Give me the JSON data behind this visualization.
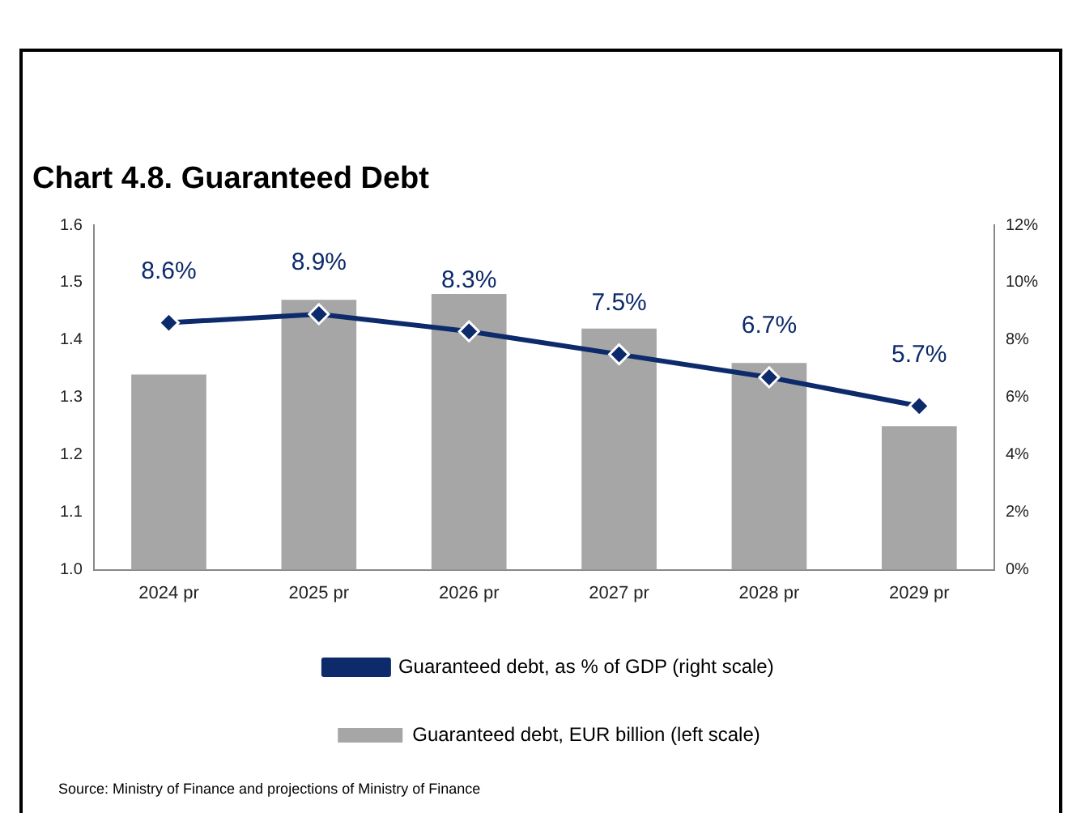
{
  "chart_data": {
    "type": "bar",
    "title": "Chart 4.8. Guaranteed Debt",
    "categories": [
      "2024 pr",
      "2025 pr",
      "2026 pr",
      "2027 pr",
      "2028 pr",
      "2029 pr"
    ],
    "series": [
      {
        "name": "Guaranteed debt, EUR billion (left scale)",
        "color": "#a6a6a6",
        "values": [
          1.34,
          1.47,
          1.48,
          1.42,
          1.36,
          1.25
        ]
      },
      {
        "type": "line",
        "axis": "y2",
        "name": "Guaranteed debt, as % of GDP (right scale)",
        "color": "#0d2a6b",
        "values": [
          8.6,
          8.9,
          8.3,
          7.5,
          6.7,
          5.7
        ],
        "value_labels": [
          "8.6%",
          "8.9%",
          "8.3%",
          "7.5%",
          "6.7%",
          "5.7%"
        ]
      }
    ],
    "ylim": [
      1.0,
      1.6
    ],
    "yticks": [
      {
        "value": 1.0,
        "label": "1.0"
      },
      1.1,
      1.2,
      1.3,
      1.4,
      1.5,
      1.6
    ],
    "y2lim": [
      0,
      12
    ],
    "y2ticks": [
      {
        "value": 0,
        "label": "0%"
      },
      {
        "value": 2,
        "label": "2%"
      },
      {
        "value": 4,
        "label": "4%"
      },
      {
        "value": 6,
        "label": "6%"
      },
      {
        "value": 8,
        "label": "8%"
      },
      {
        "value": 10,
        "label": "10%"
      },
      {
        "value": 12,
        "label": "12%"
      }
    ],
    "grid": false,
    "legend": "bottom",
    "marker": "diamond",
    "line_style": "solid",
    "annotations": [
      "Source: Ministry of Finance and projections of Ministry of Finance"
    ]
  }
}
